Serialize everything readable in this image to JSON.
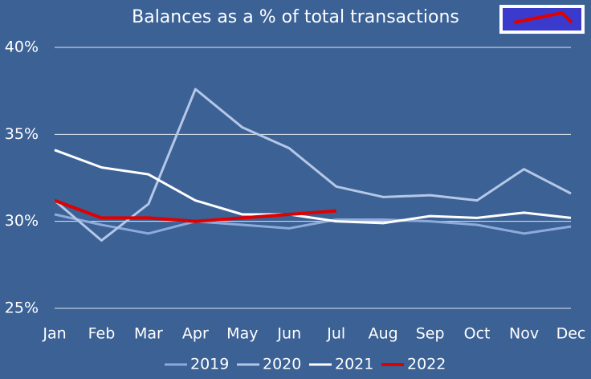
{
  "chart_data": {
    "type": "line",
    "title": "Balances as a % of total transactions",
    "categories": [
      "Jan",
      "Feb",
      "Mar",
      "Apr",
      "May",
      "Jun",
      "Jul",
      "Aug",
      "Sep",
      "Oct",
      "Nov",
      "Dec"
    ],
    "series": [
      {
        "name": "2019",
        "color": "#8eaadb",
        "values": [
          30.4,
          29.8,
          29.3,
          30.0,
          29.8,
          29.6,
          30.1,
          30.1,
          30.0,
          29.8,
          29.3,
          29.7
        ]
      },
      {
        "name": "2020",
        "color": "#b4c7e7",
        "values": [
          31.2,
          28.9,
          31.0,
          37.6,
          35.4,
          34.2,
          32.0,
          31.4,
          31.5,
          31.2,
          33.0,
          31.6
        ]
      },
      {
        "name": "2021",
        "color": "#ffffff",
        "values": [
          34.1,
          33.1,
          32.7,
          31.2,
          30.4,
          30.4,
          30.0,
          29.9,
          30.3,
          30.2,
          30.5,
          30.2
        ]
      },
      {
        "name": "2022",
        "color": "#e00000",
        "values": [
          31.2,
          30.2,
          30.2,
          30.0,
          30.2,
          30.4,
          30.6,
          null,
          null,
          null,
          null,
          null
        ]
      }
    ],
    "ylim": [
      25,
      40
    ],
    "yticks": [
      {
        "value": 25,
        "label": "25%"
      },
      {
        "value": 30,
        "label": "30%"
      },
      {
        "value": 35,
        "label": "35%"
      },
      {
        "value": 40,
        "label": "40%"
      }
    ],
    "grid": true,
    "legend": "bottom"
  }
}
